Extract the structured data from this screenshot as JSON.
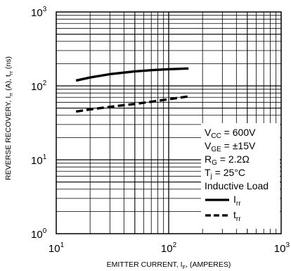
{
  "chart_data": {
    "type": "line",
    "x_scale": "log",
    "y_scale": "log",
    "xlim": [
      10,
      1000
    ],
    "ylim": [
      1,
      1000
    ],
    "grid": true,
    "xlabel": {
      "main": "EMITTER CURRENT, I",
      "sub": "F",
      "tail": ", (AMPERES)"
    },
    "ylabel": {
      "p1": "REVERSE RECOVERY, I",
      "s1": "rr",
      "p2": " (A), t",
      "s2": "rr",
      "p3": " (ns)"
    },
    "x_ticks": [
      {
        "base": "10",
        "exp": "1"
      },
      {
        "base": "10",
        "exp": "2"
      },
      {
        "base": "10",
        "exp": "3"
      }
    ],
    "y_ticks": [
      {
        "base": "10",
        "exp": "0"
      },
      {
        "base": "10",
        "exp": "1"
      },
      {
        "base": "10",
        "exp": "2"
      },
      {
        "base": "10",
        "exp": "3"
      }
    ],
    "conditions": [
      {
        "main": "V",
        "sub": "CC",
        "rest": " = 600V"
      },
      {
        "main": "V",
        "sub": "GE",
        "rest": " = ±15V"
      },
      {
        "main": "R",
        "sub": "G",
        "rest": " = 2.2Ω"
      },
      {
        "main": "T",
        "sub": "j",
        "rest": " = 25°C"
      },
      {
        "main": "Inductive Load",
        "sub": "",
        "rest": ""
      }
    ],
    "series": [
      {
        "name": "I",
        "name_sub": "rr",
        "style": "solid",
        "x": [
          15,
          20,
          30,
          50,
          70,
          100,
          150
        ],
        "y": [
          118,
          130,
          144,
          157,
          163,
          168,
          172
        ]
      },
      {
        "name": "t",
        "name_sub": "rr",
        "style": "dashed",
        "x": [
          15,
          20,
          30,
          50,
          70,
          100,
          150
        ],
        "y": [
          45,
          48,
          52,
          57,
          61,
          66,
          72
        ]
      }
    ]
  }
}
